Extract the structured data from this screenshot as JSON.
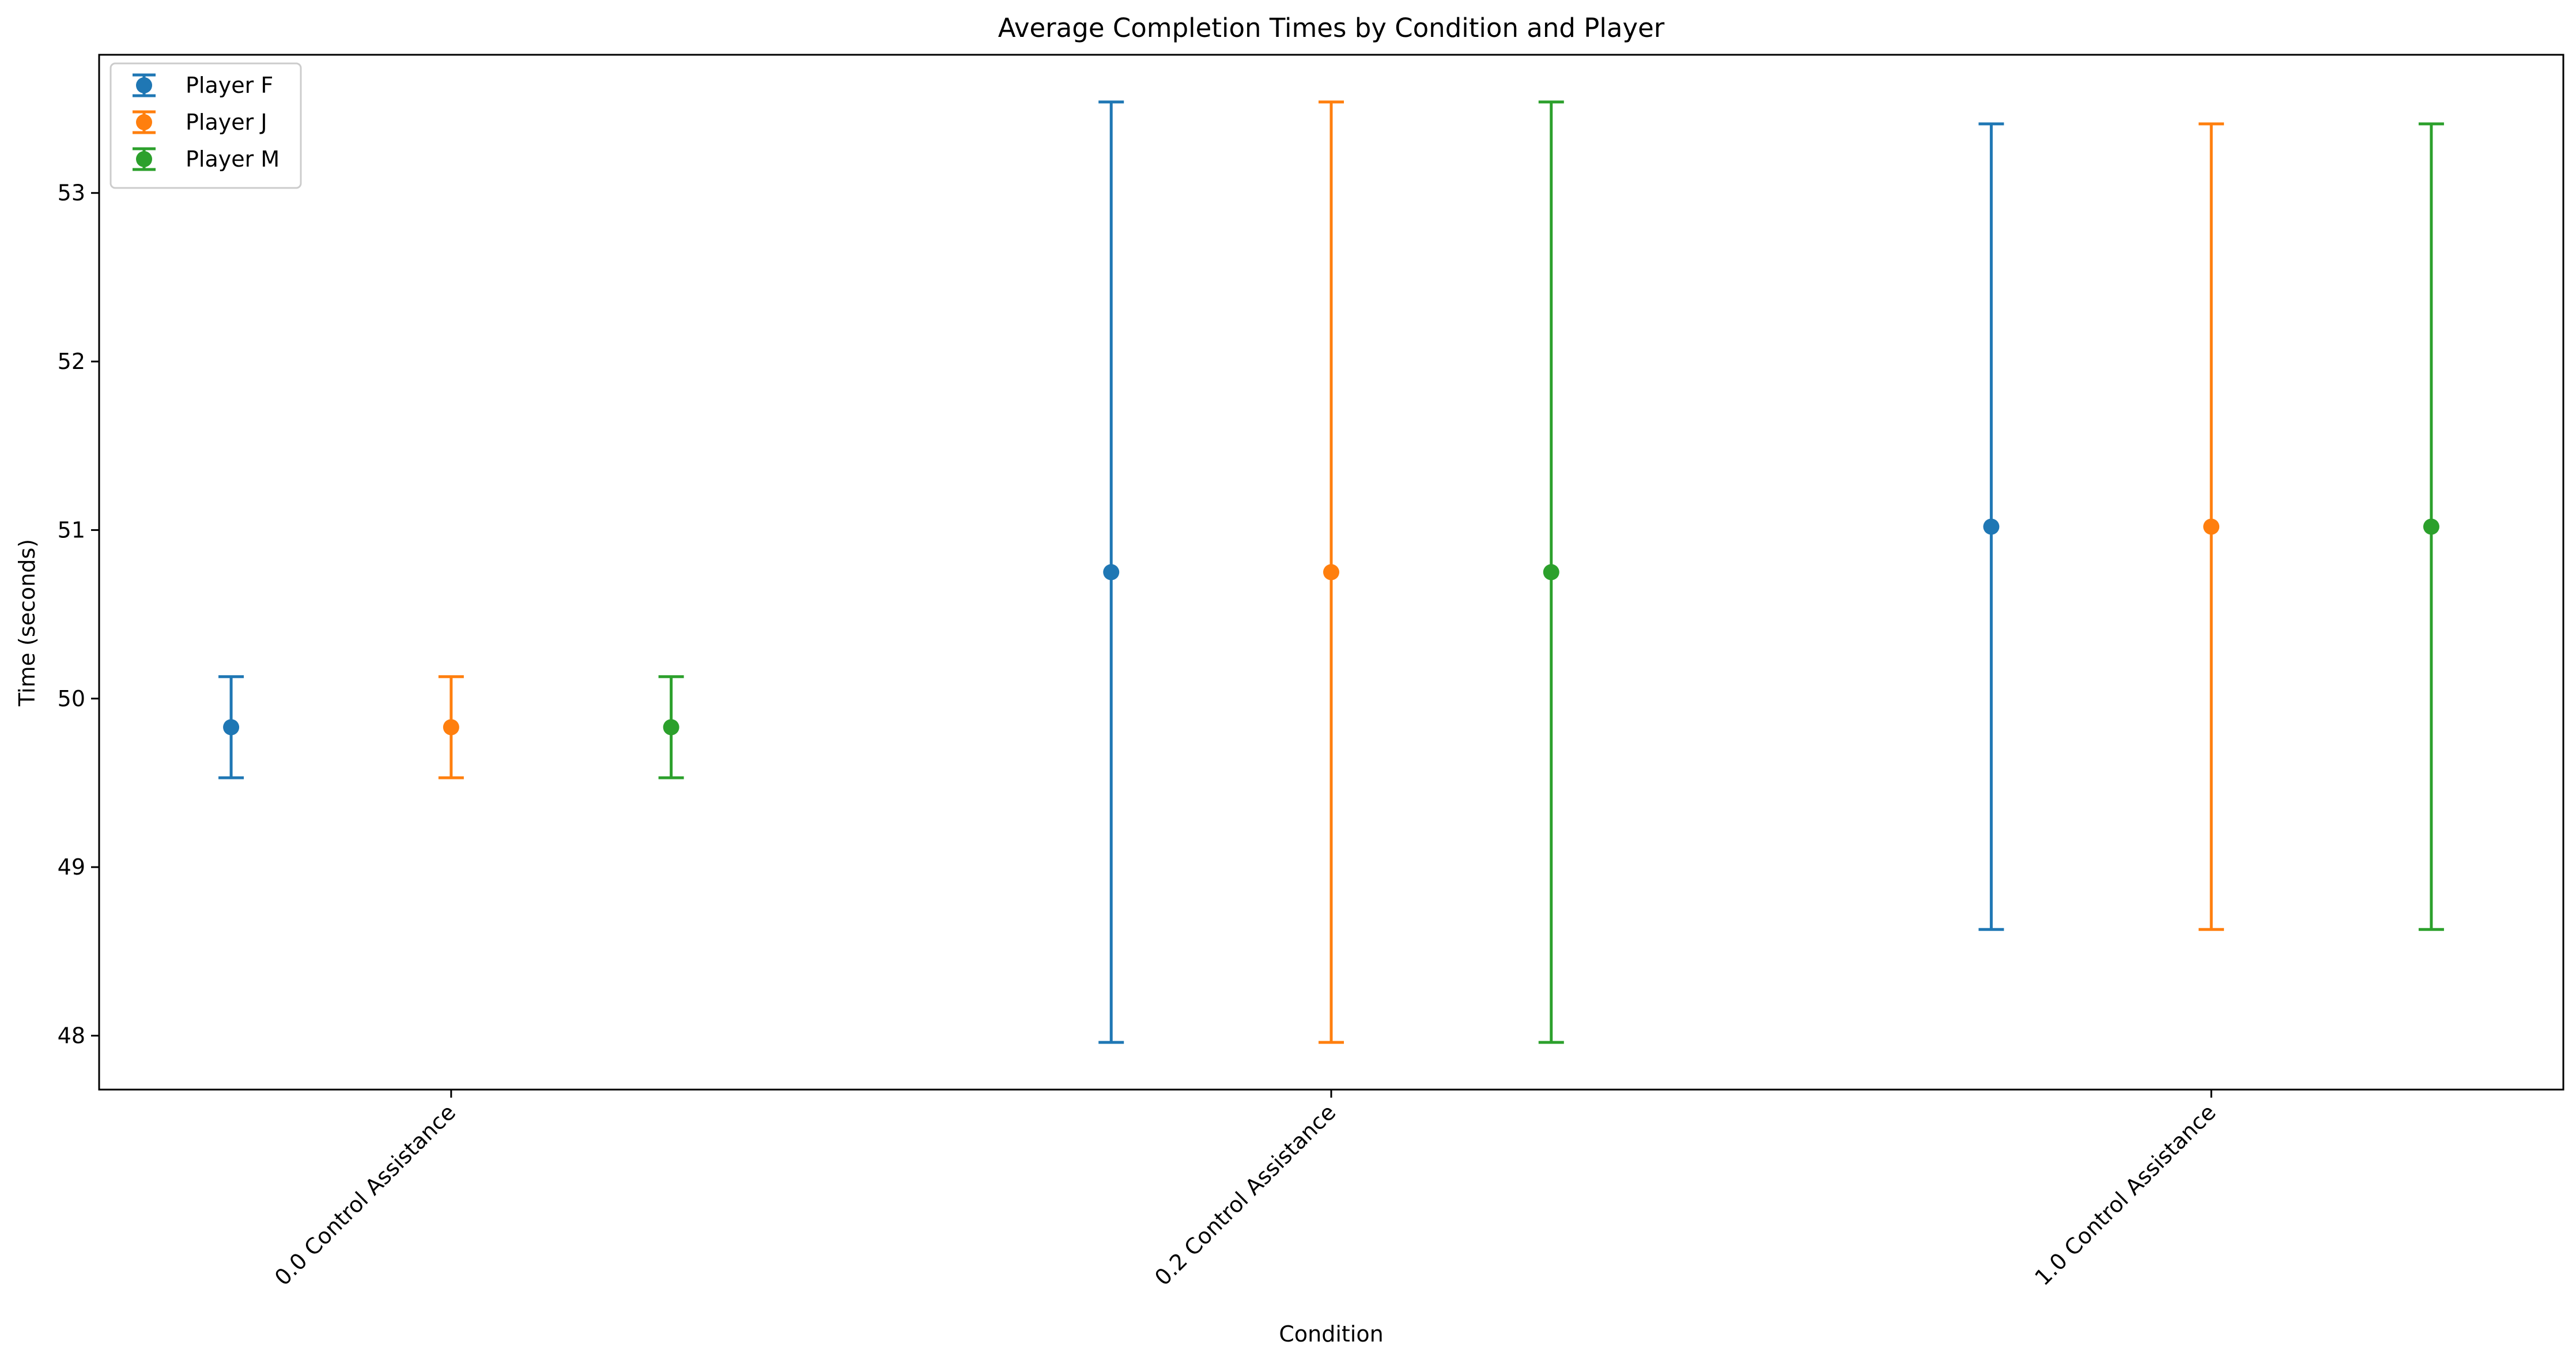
{
  "chart_data": {
    "type": "scatter",
    "title": "Average Completion Times by Condition and Player",
    "xlabel": "Condition",
    "ylabel": "Time (seconds)",
    "categories": [
      "0.0 Control Assistance",
      "0.2 Control Assistance",
      "1.0 Control Assistance"
    ],
    "ylim": [
      47.68,
      53.82
    ],
    "yticks": [
      48,
      49,
      50,
      51,
      52,
      53
    ],
    "grid": false,
    "legend_position": "top-left",
    "series": [
      {
        "name": "Player F",
        "color": "#1f77b4",
        "offset": -0.25,
        "values": [
          49.83,
          50.75,
          51.02
        ],
        "error": [
          0.3,
          2.79,
          2.39
        ]
      },
      {
        "name": "Player J",
        "color": "#ff7f0e",
        "offset": 0.0,
        "values": [
          49.83,
          50.75,
          51.02
        ],
        "error": [
          0.3,
          2.79,
          2.39
        ]
      },
      {
        "name": "Player M",
        "color": "#2ca02c",
        "offset": 0.25,
        "values": [
          49.83,
          50.75,
          51.02
        ],
        "error": [
          0.3,
          2.79,
          2.39
        ]
      }
    ]
  }
}
